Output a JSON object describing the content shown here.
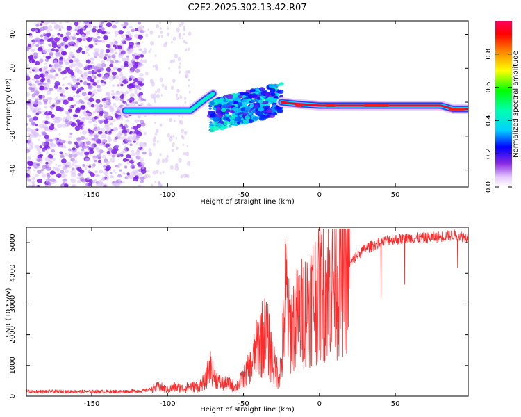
{
  "figure_title": "C2E2.2025.302.13.42.R07",
  "chart_data": [
    {
      "type": "heatmap",
      "title": "C2E2.2025.302.13.42.R07",
      "xlabel": "Height of straight line (km)",
      "ylabel": "Frequency (Hz)",
      "xlim": [
        -193,
        98
      ],
      "ylim": [
        -50,
        48
      ],
      "xticks": [
        -150,
        -100,
        -50,
        0,
        50
      ],
      "yticks": [
        40,
        20,
        0,
        -20,
        -40
      ],
      "colorbar": {
        "label": "Normalized spectral amplitude",
        "range": [
          0,
          1
        ],
        "ticks": [
          0.0,
          0.2,
          0.4,
          0.6,
          0.8
        ],
        "tick_labels": [
          "0.0",
          "0.2",
          "0.4",
          "0.6",
          "0.8"
        ]
      },
      "features": [
        {
          "name": "noise-region",
          "x_range": [
            -193,
            -115
          ],
          "freq_range": [
            -50,
            48
          ],
          "amplitude": 0.1
        },
        {
          "name": "sparse-noise",
          "x_range": [
            -115,
            -85
          ],
          "freq_range": [
            -50,
            48
          ],
          "amplitude": 0.03
        },
        {
          "name": "carrier-trace-left",
          "points": [
            [
              -128,
              -5
            ],
            [
              -110,
              -5
            ],
            [
              -95,
              -5
            ],
            [
              -85,
              -5
            ],
            [
              -75,
              2
            ],
            [
              -70,
              5
            ]
          ],
          "amplitude": 0.45
        },
        {
          "name": "scatter-blob",
          "x_range": [
            -72,
            -25
          ],
          "freq_range": [
            -15,
            8
          ],
          "amplitude": 0.3
        },
        {
          "name": "carrier-trace-right",
          "points": [
            [
              -25,
              0
            ],
            [
              -15,
              -1
            ],
            [
              0,
              -2
            ],
            [
              30,
              -2
            ],
            [
              60,
              -2
            ],
            [
              80,
              -2
            ],
            [
              88,
              -4
            ],
            [
              98,
              -4
            ]
          ],
          "amplitude": 0.95
        }
      ]
    },
    {
      "type": "line",
      "xlabel": "Height of straight line (km)",
      "ylabel": "SNR (10 * v/v)",
      "xlim": [
        -193,
        98
      ],
      "ylim": [
        0,
        5500
      ],
      "xticks": [
        -150,
        -100,
        -50,
        0,
        50
      ],
      "yticks": [
        0,
        1000,
        2000,
        3000,
        4000,
        5000
      ],
      "series": [
        {
          "name": "SNR",
          "color": "#ff2a2a",
          "x": [
            -193,
            -170,
            -150,
            -130,
            -115,
            -110,
            -105,
            -100,
            -95,
            -90,
            -85,
            -80,
            -75,
            -72,
            -70,
            -65,
            -60,
            -55,
            -50,
            -45,
            -40,
            -35,
            -30,
            -27,
            -25,
            -22,
            -20,
            -15,
            -10,
            -5,
            0,
            5,
            10,
            15,
            20,
            25,
            30,
            35,
            40,
            45,
            50,
            60,
            70,
            80,
            90,
            98
          ],
          "y": [
            150,
            150,
            150,
            150,
            180,
            250,
            300,
            200,
            300,
            250,
            320,
            300,
            500,
            1000,
            700,
            400,
            400,
            300,
            600,
            1000,
            1800,
            2000,
            1000,
            700,
            1000,
            3500,
            2200,
            2500,
            2800,
            3200,
            3400,
            3500,
            3800,
            4000,
            4300,
            4600,
            4800,
            4900,
            5000,
            5100,
            5100,
            5150,
            5150,
            5200,
            5250,
            5150
          ]
        }
      ]
    }
  ]
}
